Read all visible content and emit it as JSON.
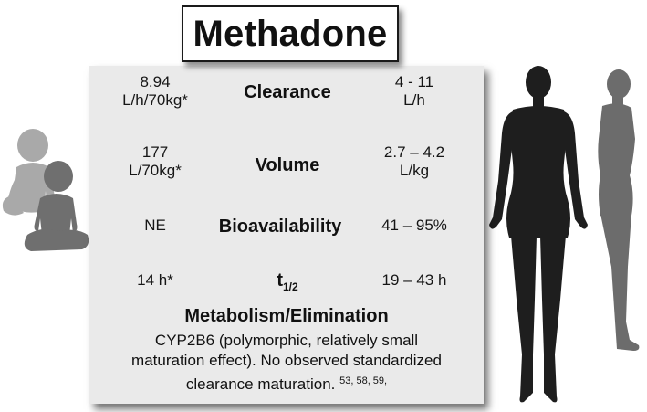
{
  "title": "Methadone",
  "rows": [
    {
      "left": [
        "8.94",
        "L/h/70kg*"
      ],
      "label": "Clearance",
      "right": [
        "4 - 11",
        "L/h"
      ]
    },
    {
      "left": [
        "177",
        "L/70kg*"
      ],
      "label": "Volume",
      "right": [
        "2.7 – 4.2",
        "L/kg"
      ]
    },
    {
      "left": [
        "NE"
      ],
      "label": "Bioavailability",
      "right": [
        "41 – 95%"
      ]
    },
    {
      "left": [
        "14 h*"
      ],
      "label_main": "t",
      "label_sub": "1/2",
      "right": [
        "19 – 43 h"
      ]
    }
  ],
  "metabolism": {
    "heading": "Metabolism/Elimination",
    "lines": [
      "CYP2B6 (polymorphic, relatively small",
      "maturation effect). No observed standardized",
      "clearance maturation."
    ],
    "refs": "53, 58, 59,"
  },
  "icons": {
    "children": "children-silhouette-icon",
    "adult_woman": "adult-woman-silhouette-icon",
    "adult_side": "adult-side-silhouette-icon"
  },
  "colors": {
    "panel": "#eaeaea",
    "child_light": "#a7a7a7",
    "child_dark": "#6e6e6e",
    "adult_dark": "#1d1d1d",
    "adult_gray": "#6c6c6c"
  }
}
